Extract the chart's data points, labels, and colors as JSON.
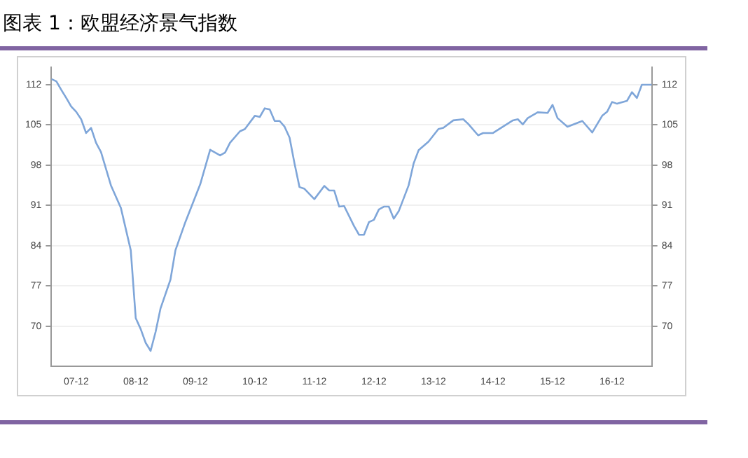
{
  "chart_data": {
    "type": "line",
    "title": "图表 1：欧盟经济景气指数",
    "x": [
      "2007-07",
      "2007-08",
      "2007-09",
      "2007-10",
      "2007-11",
      "2007-12",
      "2008-01",
      "2008-02",
      "2008-03",
      "2008-04",
      "2008-05",
      "2008-07",
      "2008-09",
      "2008-11",
      "2008-12",
      "2009-01",
      "2009-02",
      "2009-03",
      "2009-04",
      "2009-05",
      "2009-07",
      "2009-08",
      "2009-10",
      "2010-01",
      "2010-03",
      "2010-05",
      "2010-06",
      "2010-07",
      "2010-09",
      "2010-10",
      "2010-12",
      "2011-01",
      "2011-02",
      "2011-03",
      "2011-04",
      "2011-05",
      "2011-06",
      "2011-07",
      "2011-08",
      "2011-09",
      "2011-10",
      "2011-12",
      "2012-02",
      "2012-03",
      "2012-04",
      "2012-05",
      "2012-06",
      "2012-08",
      "2012-09",
      "2012-10",
      "2012-11",
      "2012-12",
      "2013-01",
      "2013-02",
      "2013-03",
      "2013-04",
      "2013-05",
      "2013-07",
      "2013-08",
      "2013-09",
      "2013-11",
      "2014-01",
      "2014-02",
      "2014-04",
      "2014-06",
      "2014-07",
      "2014-09",
      "2014-10",
      "2014-12",
      "2015-02",
      "2015-04",
      "2015-05",
      "2015-06",
      "2015-07",
      "2015-09",
      "2015-11",
      "2015-12",
      "2016-01",
      "2016-03",
      "2016-06",
      "2016-08",
      "2016-10",
      "2016-11",
      "2016-12",
      "2017-01",
      "2017-03",
      "2017-04",
      "2017-05",
      "2017-06",
      "2017-08"
    ],
    "series": [
      {
        "color": "#7fa6d9",
        "values": [
          113.0,
          112.6,
          111.1,
          109.7,
          108.2,
          107.3,
          106.0,
          103.6,
          104.5,
          101.9,
          100.3,
          94.5,
          90.6,
          83.2,
          71.4,
          69.5,
          67.1,
          65.7,
          69.0,
          73.1,
          78.1,
          83.2,
          88.1,
          94.7,
          100.7,
          99.7,
          100.2,
          101.9,
          103.9,
          104.3,
          106.6,
          106.4,
          107.9,
          107.7,
          105.7,
          105.7,
          104.7,
          102.8,
          98.3,
          94.2,
          93.9,
          92.1,
          94.4,
          93.6,
          93.6,
          90.8,
          90.9,
          87.4,
          85.9,
          85.9,
          88.1,
          88.5,
          90.3,
          90.8,
          90.8,
          88.7,
          90.0,
          94.5,
          98.3,
          100.6,
          102.1,
          104.3,
          104.5,
          105.8,
          106.0,
          105.2,
          103.2,
          103.6,
          103.6,
          104.7,
          105.8,
          106.0,
          105.1,
          106.2,
          107.2,
          107.1,
          108.5,
          106.2,
          104.7,
          105.7,
          103.7,
          106.6,
          107.3,
          109.0,
          108.7,
          109.2,
          110.7,
          109.7,
          112.0,
          112.0
        ]
      }
    ],
    "xlim": [
      "2007-07",
      "2017-08"
    ],
    "xticks": [
      {
        "value": "2007-12",
        "label": "07-12"
      },
      {
        "value": "2008-12",
        "label": "08-12"
      },
      {
        "value": "2009-12",
        "label": "09-12"
      },
      {
        "value": "2010-12",
        "label": "10-12"
      },
      {
        "value": "2011-12",
        "label": "11-12"
      },
      {
        "value": "2012-12",
        "label": "12-12"
      },
      {
        "value": "2013-12",
        "label": "13-12"
      },
      {
        "value": "2014-12",
        "label": "14-12"
      },
      {
        "value": "2015-12",
        "label": "15-12"
      },
      {
        "value": "2016-12",
        "label": "16-12"
      }
    ],
    "ylim": [
      63,
      115
    ],
    "yticks": [
      70,
      77,
      84,
      91,
      98,
      105,
      112
    ],
    "y2lim": [
      63,
      115
    ],
    "y2ticks": [
      70,
      77,
      84,
      91,
      98,
      105,
      112
    ],
    "grid": "y",
    "marker": "none",
    "line_style": "solid",
    "legend": false
  }
}
